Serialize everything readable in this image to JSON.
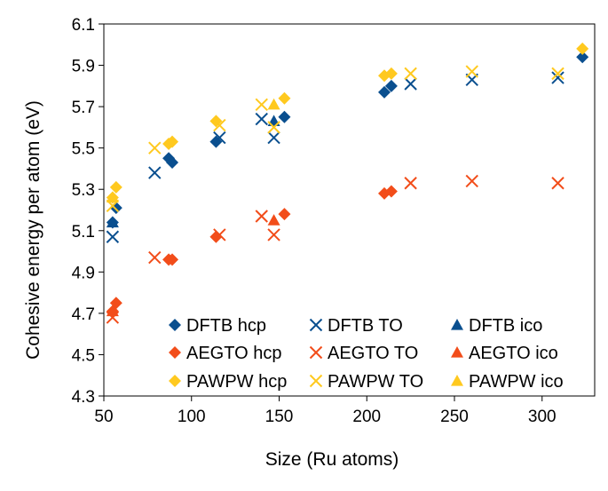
{
  "chart_data": {
    "type": "scatter",
    "title": "",
    "xlabel": "Size (Ru atoms)",
    "ylabel": "Cohesive energy per atom (eV)",
    "xlim": [
      50,
      330
    ],
    "ylim": [
      4.3,
      6.1
    ],
    "xticks": [
      50,
      100,
      150,
      200,
      250,
      300
    ],
    "yticks": [
      4.3,
      4.5,
      4.7,
      4.9,
      5.1,
      5.3,
      5.5,
      5.7,
      5.9,
      6.1
    ],
    "xtick_labels": [
      "50",
      "100",
      "150",
      "200",
      "250",
      "300"
    ],
    "ytick_labels": [
      "4.3",
      "4.5",
      "4.7",
      "4.9",
      "5.1",
      "5.3",
      "5.5",
      "5.7",
      "5.9",
      "6.1"
    ],
    "grid": false,
    "legend_position": "bottom-right",
    "series": [
      {
        "name": "DFTB hcp",
        "marker": "diamond",
        "color": "#0a4f8f",
        "x": [
          55,
          57,
          87,
          89,
          114,
          153,
          210,
          214,
          323
        ],
        "y": [
          5.14,
          5.21,
          5.45,
          5.43,
          5.53,
          5.65,
          5.77,
          5.8,
          5.94
        ]
      },
      {
        "name": "DFTB TO",
        "marker": "x",
        "color": "#0a4f8f",
        "x": [
          55,
          79,
          116,
          140,
          147,
          225,
          260,
          309
        ],
        "y": [
          5.07,
          5.38,
          5.55,
          5.64,
          5.55,
          5.81,
          5.83,
          5.84
        ]
      },
      {
        "name": "DFTB ico",
        "marker": "triangle",
        "color": "#0a4f8f",
        "x": [
          55,
          147
        ],
        "y": [
          5.14,
          5.63
        ]
      },
      {
        "name": "AEGTO hcp",
        "marker": "diamond",
        "color": "#f24d1a",
        "x": [
          55,
          57,
          87,
          89,
          114,
          153,
          210,
          214
        ],
        "y": [
          4.71,
          4.75,
          4.96,
          4.96,
          5.07,
          5.18,
          5.28,
          5.29
        ]
      },
      {
        "name": "AEGTO TO",
        "marker": "x",
        "color": "#f24d1a",
        "x": [
          55,
          79,
          116,
          140,
          147,
          225,
          260,
          309
        ],
        "y": [
          4.68,
          4.97,
          5.08,
          5.17,
          5.08,
          5.33,
          5.34,
          5.33
        ]
      },
      {
        "name": "AEGTO ico",
        "marker": "triangle",
        "color": "#f24d1a",
        "x": [
          55,
          147
        ],
        "y": [
          4.71,
          5.15
        ]
      },
      {
        "name": "PAWPW hcp",
        "marker": "diamond",
        "color": "#ffc91f",
        "x": [
          55,
          57,
          87,
          89,
          114,
          153,
          210,
          214,
          323
        ],
        "y": [
          5.26,
          5.31,
          5.52,
          5.53,
          5.63,
          5.74,
          5.85,
          5.86,
          5.98
        ]
      },
      {
        "name": "PAWPW TO",
        "marker": "x",
        "color": "#ffc91f",
        "x": [
          55,
          79,
          116,
          140,
          147,
          225,
          260,
          309
        ],
        "y": [
          5.22,
          5.5,
          5.61,
          5.71,
          5.6,
          5.86,
          5.87,
          5.86
        ]
      },
      {
        "name": "PAWPW ico",
        "marker": "triangle",
        "color": "#ffc91f",
        "x": [
          55,
          147
        ],
        "y": [
          5.26,
          5.71
        ]
      }
    ]
  }
}
